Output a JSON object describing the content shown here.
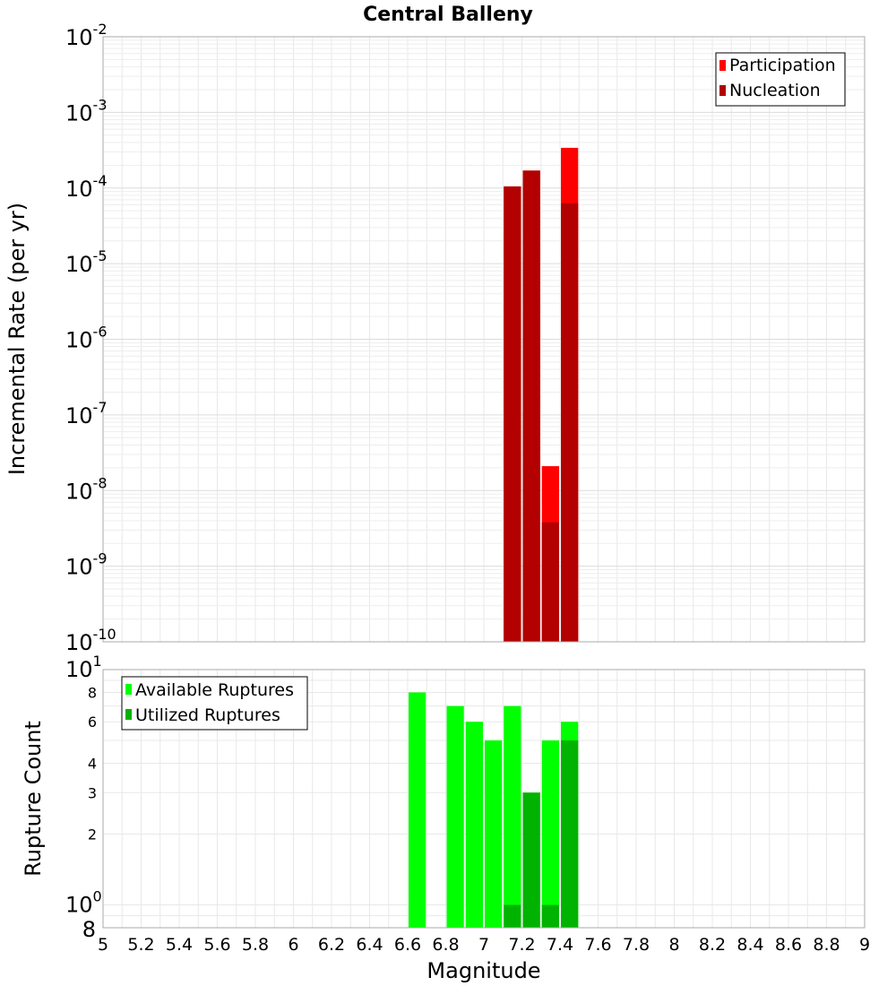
{
  "chart_data": [
    {
      "type": "bar",
      "title": "Central Balleny",
      "xlabel": "",
      "ylabel": "Incremental Rate (per yr)",
      "xlim": [
        5,
        9
      ],
      "ylim": [
        1e-10,
        0.01
      ],
      "yscale": "log",
      "grid": true,
      "legend": "top-right",
      "ytick_labels": [
        {
          "base": "10",
          "exp": "-2"
        },
        {
          "base": "10",
          "exp": "-3"
        },
        {
          "base": "10",
          "exp": "-4"
        },
        {
          "base": "10",
          "exp": "-5"
        },
        {
          "base": "10",
          "exp": "-6"
        },
        {
          "base": "10",
          "exp": "-7"
        },
        {
          "base": "10",
          "exp": "-8"
        },
        {
          "base": "10",
          "exp": "-9"
        },
        {
          "base": "10",
          "exp": "-10"
        }
      ],
      "series": [
        {
          "name": "Participation",
          "color": "#ff0000",
          "x": [
            7.15,
            7.25,
            7.35,
            7.45
          ],
          "values": [
            0.000105,
            0.00017,
            2.1e-08,
            0.00034
          ]
        },
        {
          "name": "Nucleation",
          "color": "#b30000",
          "x": [
            7.15,
            7.25,
            7.35,
            7.45
          ],
          "values": [
            0.000105,
            0.00017,
            3.8e-09,
            6.3e-05
          ]
        }
      ]
    },
    {
      "type": "bar",
      "xlabel": "Magnitude",
      "ylabel": "Rupture Count",
      "xlim": [
        5,
        9
      ],
      "ylim": [
        0.8,
        10
      ],
      "yscale": "log",
      "grid": true,
      "legend": "top-left",
      "xticks": [
        "5",
        "5.2",
        "5.4",
        "5.6",
        "5.8",
        "6",
        "6.2",
        "6.4",
        "6.6",
        "6.8",
        "7",
        "7.2",
        "7.4",
        "7.6",
        "7.8",
        "8",
        "8.2",
        "8.4",
        "8.6",
        "8.8",
        "9"
      ],
      "ytick_labels": [
        {
          "value": 10,
          "base": "10",
          "exp": "1"
        },
        {
          "value": 8,
          "base": "8",
          "exp": ""
        },
        {
          "value": 6,
          "base": "6",
          "exp": ""
        },
        {
          "value": 4,
          "base": "4",
          "exp": ""
        },
        {
          "value": 3,
          "base": "3",
          "exp": ""
        },
        {
          "value": 2,
          "base": "2",
          "exp": ""
        },
        {
          "value": 1,
          "base": "10",
          "exp": "0"
        },
        {
          "value": 0.8,
          "base": "8",
          "exp": ""
        }
      ],
      "series": [
        {
          "name": "Available Ruptures",
          "color": "#00ff00",
          "x": [
            6.65,
            6.85,
            6.95,
            7.05,
            7.15,
            7.25,
            7.35,
            7.45
          ],
          "values": [
            8,
            7,
            6,
            5,
            7,
            3,
            5,
            6
          ]
        },
        {
          "name": "Utilized Ruptures",
          "color": "#00b300",
          "x": [
            7.15,
            7.25,
            7.35,
            7.45
          ],
          "values": [
            1,
            3,
            1,
            5
          ]
        }
      ]
    }
  ]
}
